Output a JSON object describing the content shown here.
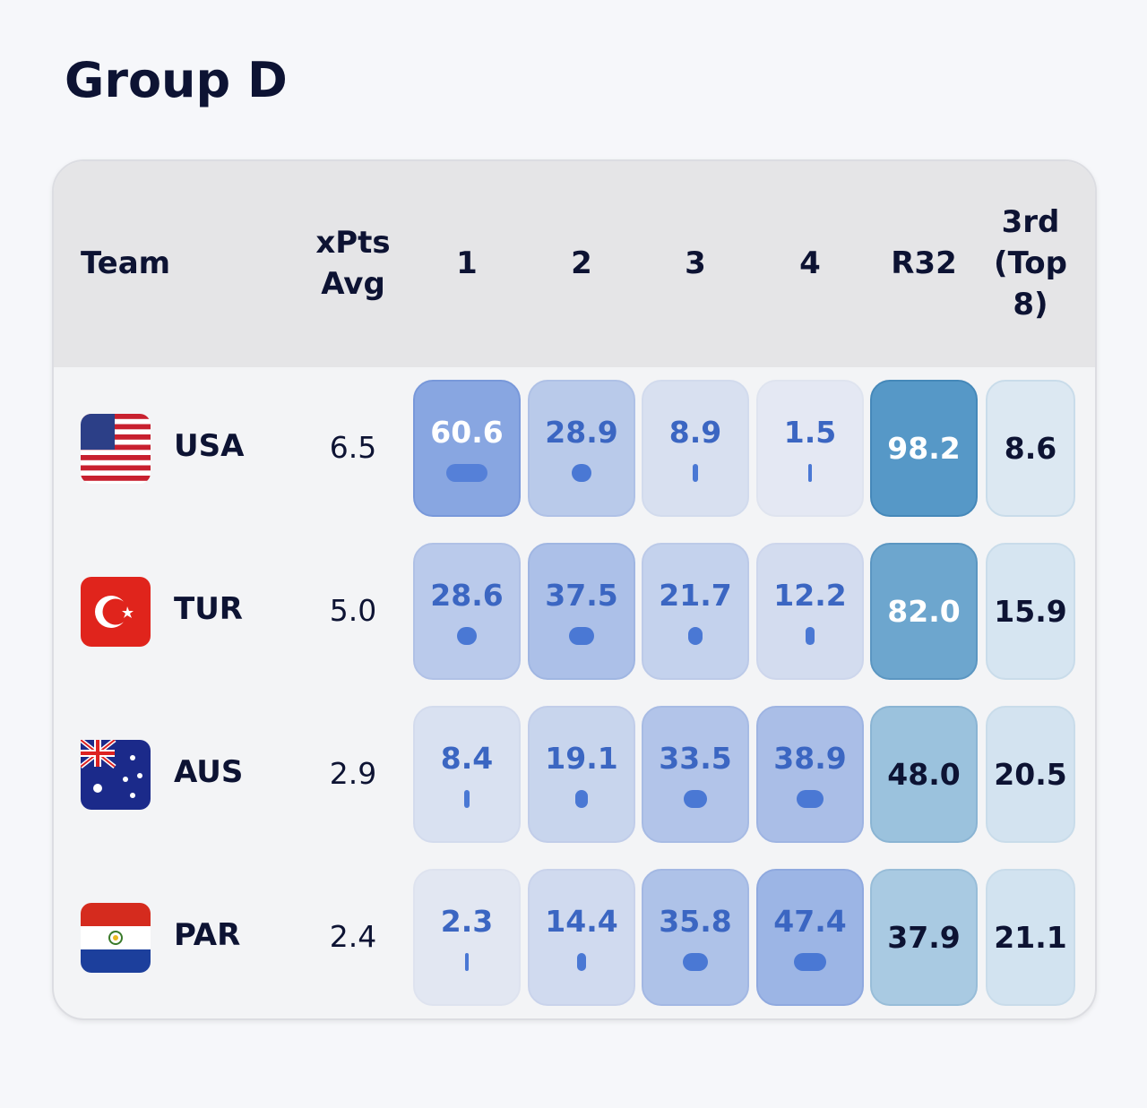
{
  "header": {
    "title": "Group D"
  },
  "table": {
    "columns": [
      "Team",
      "xPts Avg",
      "1",
      "2",
      "3",
      "4",
      "R32",
      "3rd (Top 8)"
    ],
    "rows": [
      [
        "USA",
        "6.5",
        "60.6",
        "28.9",
        "8.9",
        "1.5",
        "98.2",
        "8.6"
      ],
      [
        "TUR",
        "5.0",
        "28.6",
        "37.5",
        "21.7",
        "12.2",
        "82.0",
        "15.9"
      ],
      [
        "AUS",
        "2.9",
        "8.4",
        "19.1",
        "33.5",
        "38.9",
        "48.0",
        "20.5"
      ],
      [
        "PAR",
        "2.4",
        "2.3",
        "14.4",
        "35.8",
        "47.4",
        "37.9",
        "21.1"
      ]
    ]
  }
}
